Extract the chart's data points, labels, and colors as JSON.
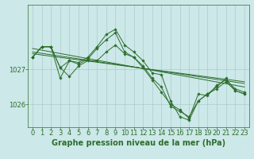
{
  "bg_color": "#cce8e8",
  "grid_color": "#aacccc",
  "line_color": "#2d6e2d",
  "marker_color": "#2d6e2d",
  "series1": [
    1027.35,
    1027.65,
    1027.65,
    1027.05,
    1026.8,
    1027.1,
    1027.25,
    1027.25,
    1027.5,
    1027.7,
    1027.45,
    1027.35,
    1027.1,
    1026.75,
    1026.5,
    1025.95,
    1025.8,
    1025.65,
    1026.1,
    1026.3,
    1026.45,
    1026.65,
    1026.4,
    1026.3
  ],
  "series2": [
    1027.35,
    1027.65,
    1027.65,
    1027.05,
    1027.25,
    1027.15,
    1027.3,
    1027.6,
    1027.85,
    1028.05,
    1027.5,
    1027.35,
    1027.05,
    1026.7,
    1026.35,
    1026.0,
    1025.85,
    1025.6,
    1026.3,
    1026.25,
    1026.55,
    1026.7,
    1026.45,
    1026.35
  ],
  "series3": [
    1027.35,
    1027.65,
    1027.65,
    1026.75,
    1027.25,
    1027.2,
    1027.35,
    1027.65,
    1028.0,
    1028.15,
    1027.7,
    1027.5,
    1027.25,
    1026.9,
    1026.85,
    1026.1,
    1025.65,
    1025.55,
    1026.1,
    1026.3,
    1026.5,
    1026.75,
    1026.4,
    1026.3
  ],
  "trend1_y": [
    1027.6,
    1026.5
  ],
  "trend2_y": [
    1027.5,
    1026.6
  ],
  "trend3_y": [
    1027.45,
    1026.65
  ],
  "xlim": [
    -0.5,
    23.5
  ],
  "ylim": [
    1025.35,
    1028.85
  ],
  "yticks": [
    1026,
    1027
  ],
  "xticks": [
    0,
    1,
    2,
    3,
    4,
    5,
    6,
    7,
    8,
    9,
    10,
    11,
    12,
    13,
    14,
    15,
    16,
    17,
    18,
    19,
    20,
    21,
    22,
    23
  ],
  "xlabel": "Graphe pression niveau de la mer (hPa)",
  "xlabel_fontsize": 7,
  "tick_fontsize": 6,
  "figsize": [
    3.2,
    2.0
  ],
  "dpi": 100
}
